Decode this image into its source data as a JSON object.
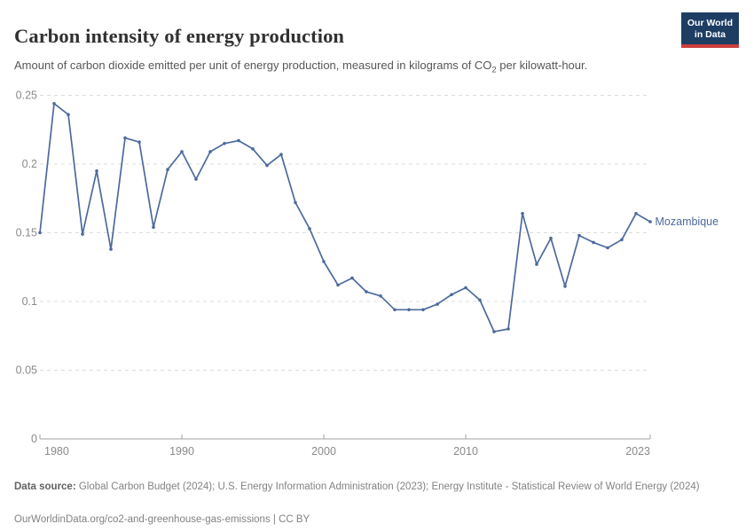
{
  "header": {
    "title": "Carbon intensity of energy production",
    "subtitle_before_sub": "Amount of carbon dioxide emitted per unit of energy production, measured in kilograms of CO",
    "subtitle_sub": "2",
    "subtitle_after_sub": " per kilowatt-hour."
  },
  "logo": {
    "line1": "Our World",
    "line2": "in Data",
    "bg_color": "#1d3d63",
    "bar_color": "#cc3e3c"
  },
  "footer": {
    "source_label": "Data source:",
    "source_text": " Global Carbon Budget (2024); U.S. Energy Information Administration (2023); Energy Institute - Statistical Review of World Energy (2024)",
    "license_line": "OurWorldinData.org/co2-and-greenhouse-gas-emissions | CC BY"
  },
  "chart_data": {
    "type": "line",
    "title": "Carbon intensity of energy production",
    "xlabel": "",
    "ylabel": "kilograms of CO2 per kilowatt-hour",
    "xlim": [
      1980,
      2023
    ],
    "ylim": [
      0,
      0.25
    ],
    "grid": "horizontal-dashed",
    "legend_position": "line-end-label",
    "yticks": [
      {
        "value": 0,
        "label": "0"
      },
      {
        "value": 0.05,
        "label": "0.05"
      },
      {
        "value": 0.1,
        "label": "0.1"
      },
      {
        "value": 0.15,
        "label": "0.15"
      },
      {
        "value": 0.2,
        "label": "0.2"
      },
      {
        "value": 0.25,
        "label": "0.25"
      }
    ],
    "xticks": [
      {
        "value": 1980,
        "label": "1980"
      },
      {
        "value": 1990,
        "label": "1990"
      },
      {
        "value": 2000,
        "label": "2000"
      },
      {
        "value": 2010,
        "label": "2010"
      },
      {
        "value": 2023,
        "label": "2023"
      }
    ],
    "series": [
      {
        "name": "Mozambique",
        "color": "#4c6a9c",
        "x": [
          1980,
          1981,
          1982,
          1983,
          1984,
          1985,
          1986,
          1987,
          1988,
          1989,
          1990,
          1991,
          1992,
          1993,
          1994,
          1995,
          1996,
          1997,
          1998,
          1999,
          2000,
          2001,
          2002,
          2003,
          2004,
          2005,
          2006,
          2007,
          2008,
          2009,
          2010,
          2011,
          2012,
          2013,
          2014,
          2015,
          2016,
          2017,
          2018,
          2019,
          2020,
          2021,
          2022,
          2023
        ],
        "values": [
          0.15,
          0.244,
          0.236,
          0.149,
          0.195,
          0.138,
          0.219,
          0.216,
          0.154,
          0.196,
          0.209,
          0.189,
          0.209,
          0.215,
          0.217,
          0.211,
          0.199,
          0.207,
          0.172,
          0.153,
          0.129,
          0.112,
          0.117,
          0.107,
          0.104,
          0.094,
          0.094,
          0.094,
          0.098,
          0.105,
          0.11,
          0.101,
          0.078,
          0.08,
          0.164,
          0.127,
          0.146,
          0.111,
          0.148,
          0.143,
          0.139,
          0.145,
          0.164,
          0.158
        ]
      }
    ],
    "axis_color": "#a3a3a3",
    "gridline_color": "#dcdcdc",
    "tick_label_color": "#8a8a8a"
  }
}
